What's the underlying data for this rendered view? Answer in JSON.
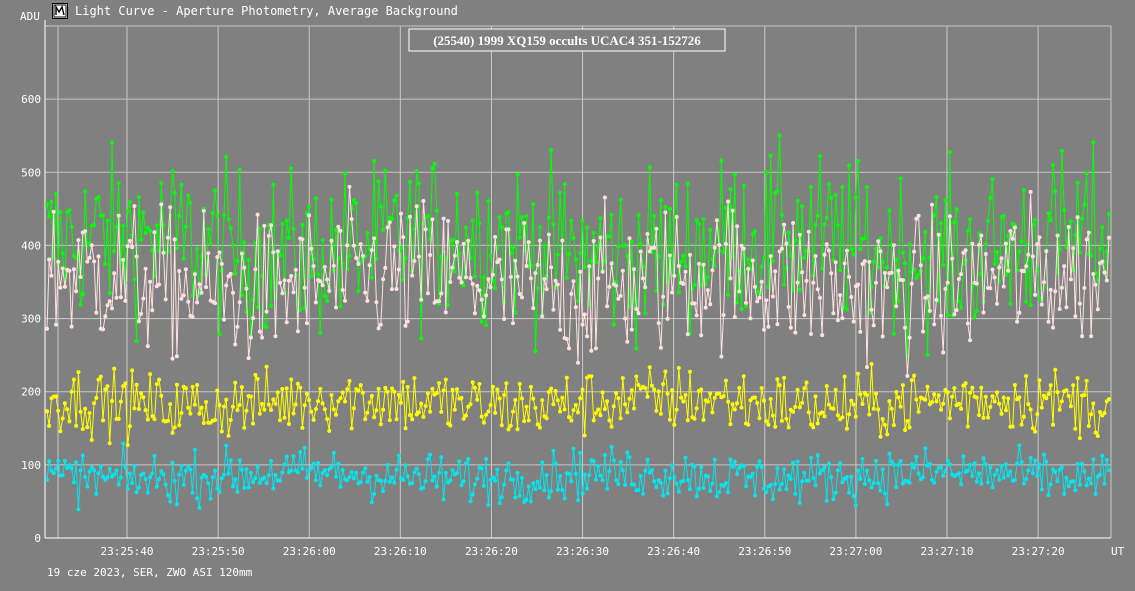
{
  "window": {
    "title": "Light Curve - Aperture Photometry, Average Background",
    "icon": "light-curve-app-icon"
  },
  "footer": {
    "text": "19 cze 2023, SER, ZWO ASI 120mm"
  },
  "chart_data": {
    "type": "line",
    "title": "(25540) 1999 XQ159 occults UCAC4 351-152726",
    "xlabel": "UT",
    "ylabel": "ADU",
    "ylim": [
      0,
      700
    ],
    "yticks": [
      0,
      100,
      200,
      300,
      400,
      500,
      600
    ],
    "xrange": [
      "23:25:31",
      "23:27:28"
    ],
    "xticks": [
      "23:25:40",
      "23:25:50",
      "23:26:00",
      "23:26:10",
      "23:26:20",
      "23:26:30",
      "23:26:40",
      "23:26:50",
      "23:27:00",
      "23:27:10",
      "23:27:20"
    ],
    "grid": true,
    "marker": "dot",
    "colors": {
      "background": "#808080",
      "grid": "#c8c8c8",
      "axis": "#ffffff",
      "title_box": "#808080",
      "title_border": "#ffffff"
    },
    "series": [
      {
        "color": "#00ff00",
        "mean": 400,
        "spread": 100,
        "samples": 475
      },
      {
        "color": "#ffe0e0",
        "mean": 350,
        "spread": 90,
        "samples": 475
      },
      {
        "color": "#ffff00",
        "mean": 185,
        "spread": 40,
        "samples": 475
      },
      {
        "color": "#00e5ee",
        "mean": 85,
        "spread": 30,
        "samples": 475
      }
    ]
  }
}
